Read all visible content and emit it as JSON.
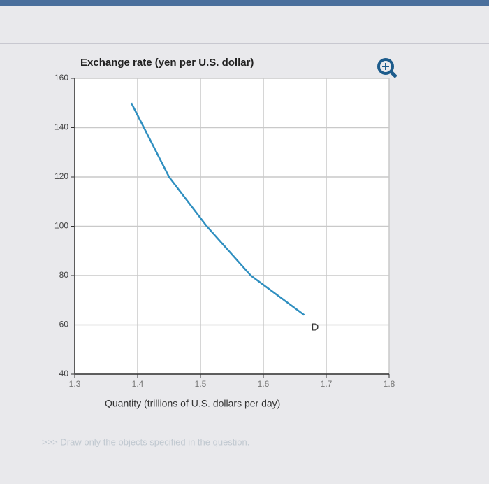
{
  "chart_data": {
    "type": "line",
    "title": "Exchange rate (yen per U.S. dollar)",
    "x_label": "Quantity (trillions of U.S. dollars per day)",
    "x": [
      1.39,
      1.41,
      1.45,
      1.51,
      1.58,
      1.665
    ],
    "series": [
      {
        "name": "D",
        "color": "#2f8fc0",
        "values": [
          150,
          140,
          120,
          100,
          80,
          64
        ]
      }
    ],
    "xlim": [
      1.3,
      1.8
    ],
    "xticks": [
      1.3,
      1.4,
      1.5,
      1.6,
      1.7,
      1.8
    ],
    "ylim": [
      40,
      160
    ],
    "yticks": [
      40,
      60,
      80,
      100,
      120,
      140,
      160
    ],
    "grid": true
  },
  "instruction": ">>> Draw only the objects specified in the question."
}
